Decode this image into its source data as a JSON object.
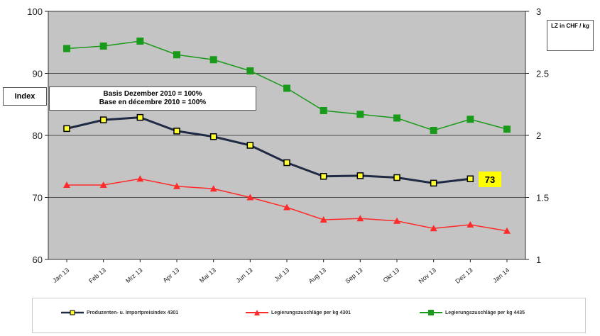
{
  "chart_data": {
    "type": "line",
    "categories": [
      "Jan 13",
      "Feb 13",
      "Mrz 13",
      "Apr 13",
      "Mai 13",
      "Jun 13",
      "Jul 13",
      "Aug 13",
      "Sep 13",
      "Okt 13",
      "Nov 13",
      "Dez 13",
      "Jan 14"
    ],
    "y_left": {
      "label": "Index",
      "ylim": [
        60,
        100
      ],
      "ticks": [
        60,
        70,
        80,
        90,
        100
      ]
    },
    "y_right": {
      "label": "LZ in CHF / kg",
      "ylim": [
        1,
        3
      ],
      "ticks": [
        "1",
        "1.5",
        "2",
        "2.5",
        "3"
      ]
    },
    "annotation": "Basis Dezember 2010 = 100%",
    "annotation2": "Base en décembre 2010 = 100%",
    "last_value_label": "73",
    "series": [
      {
        "name": "Produzenten- u. Importpreisindex 4301",
        "axis": "left",
        "color": "#1f2a44",
        "marker": "square-yellow",
        "values": [
          81.1,
          82.5,
          82.9,
          80.7,
          79.8,
          78.4,
          75.6,
          73.4,
          73.5,
          73.2,
          72.3,
          73.0,
          null
        ]
      },
      {
        "name": "Legierungszuschläge per kg 4301",
        "axis": "right",
        "color": "#ff2a2a",
        "marker": "triangle",
        "values": [
          1.6,
          1.6,
          1.65,
          1.59,
          1.57,
          1.5,
          1.42,
          1.32,
          1.33,
          1.31,
          1.25,
          1.28,
          1.23
        ]
      },
      {
        "name": "Legierungszuschläge per kg 4435",
        "axis": "right",
        "color": "#1a9a1a",
        "marker": "square",
        "values": [
          2.7,
          2.72,
          2.76,
          2.65,
          2.61,
          2.52,
          2.38,
          2.2,
          2.17,
          2.14,
          2.04,
          2.13,
          2.05
        ]
      }
    ]
  }
}
